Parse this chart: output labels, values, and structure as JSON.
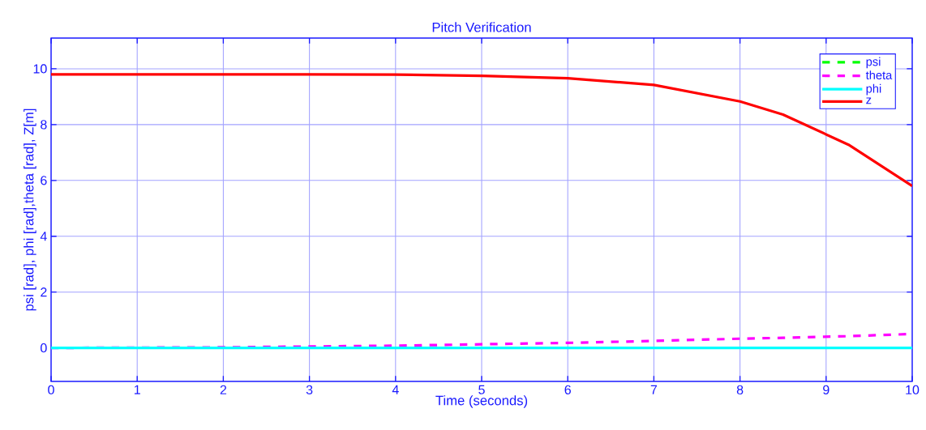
{
  "chart_data": {
    "type": "line",
    "title": "Pitch Verification",
    "xlabel": "Time (seconds)",
    "ylabel": "psi [rad], phi [rad],theta [rad], Z[m]",
    "xlim": [
      0,
      10
    ],
    "ylim": [
      -1.2,
      11.1
    ],
    "xticks": [
      0,
      1,
      2,
      3,
      4,
      5,
      6,
      7,
      8,
      9,
      10
    ],
    "yticks": [
      0,
      2,
      4,
      6,
      8,
      10
    ],
    "grid": true,
    "legend": "top right",
    "x": [
      0,
      1,
      2,
      3,
      4,
      5,
      6,
      7,
      8,
      8.5,
      9.26,
      10
    ],
    "series": [
      {
        "name": "psi",
        "color": "#00ff00",
        "line_style": "dashed",
        "values": [
          null,
          null,
          null,
          null,
          null,
          null,
          null,
          null,
          null,
          null,
          null,
          null
        ]
      },
      {
        "name": "theta",
        "color": "#ff00ff",
        "line_style": "dashed",
        "values": [
          0,
          0.01,
          0.02,
          0.05,
          0.08,
          0.13,
          0.18,
          0.25,
          0.33,
          0.36,
          0.42,
          0.5
        ]
      },
      {
        "name": "phi",
        "color": "#00ffff",
        "line_style": "solid",
        "values": [
          0,
          0,
          0,
          0,
          0,
          0,
          0,
          0,
          0,
          0,
          0,
          0
        ]
      },
      {
        "name": "z",
        "color": "#ff0000",
        "line_style": "solid",
        "values": [
          9.8,
          9.8,
          9.8,
          9.8,
          9.79,
          9.75,
          9.66,
          9.42,
          8.83,
          8.36,
          7.28,
          5.8
        ]
      }
    ]
  }
}
